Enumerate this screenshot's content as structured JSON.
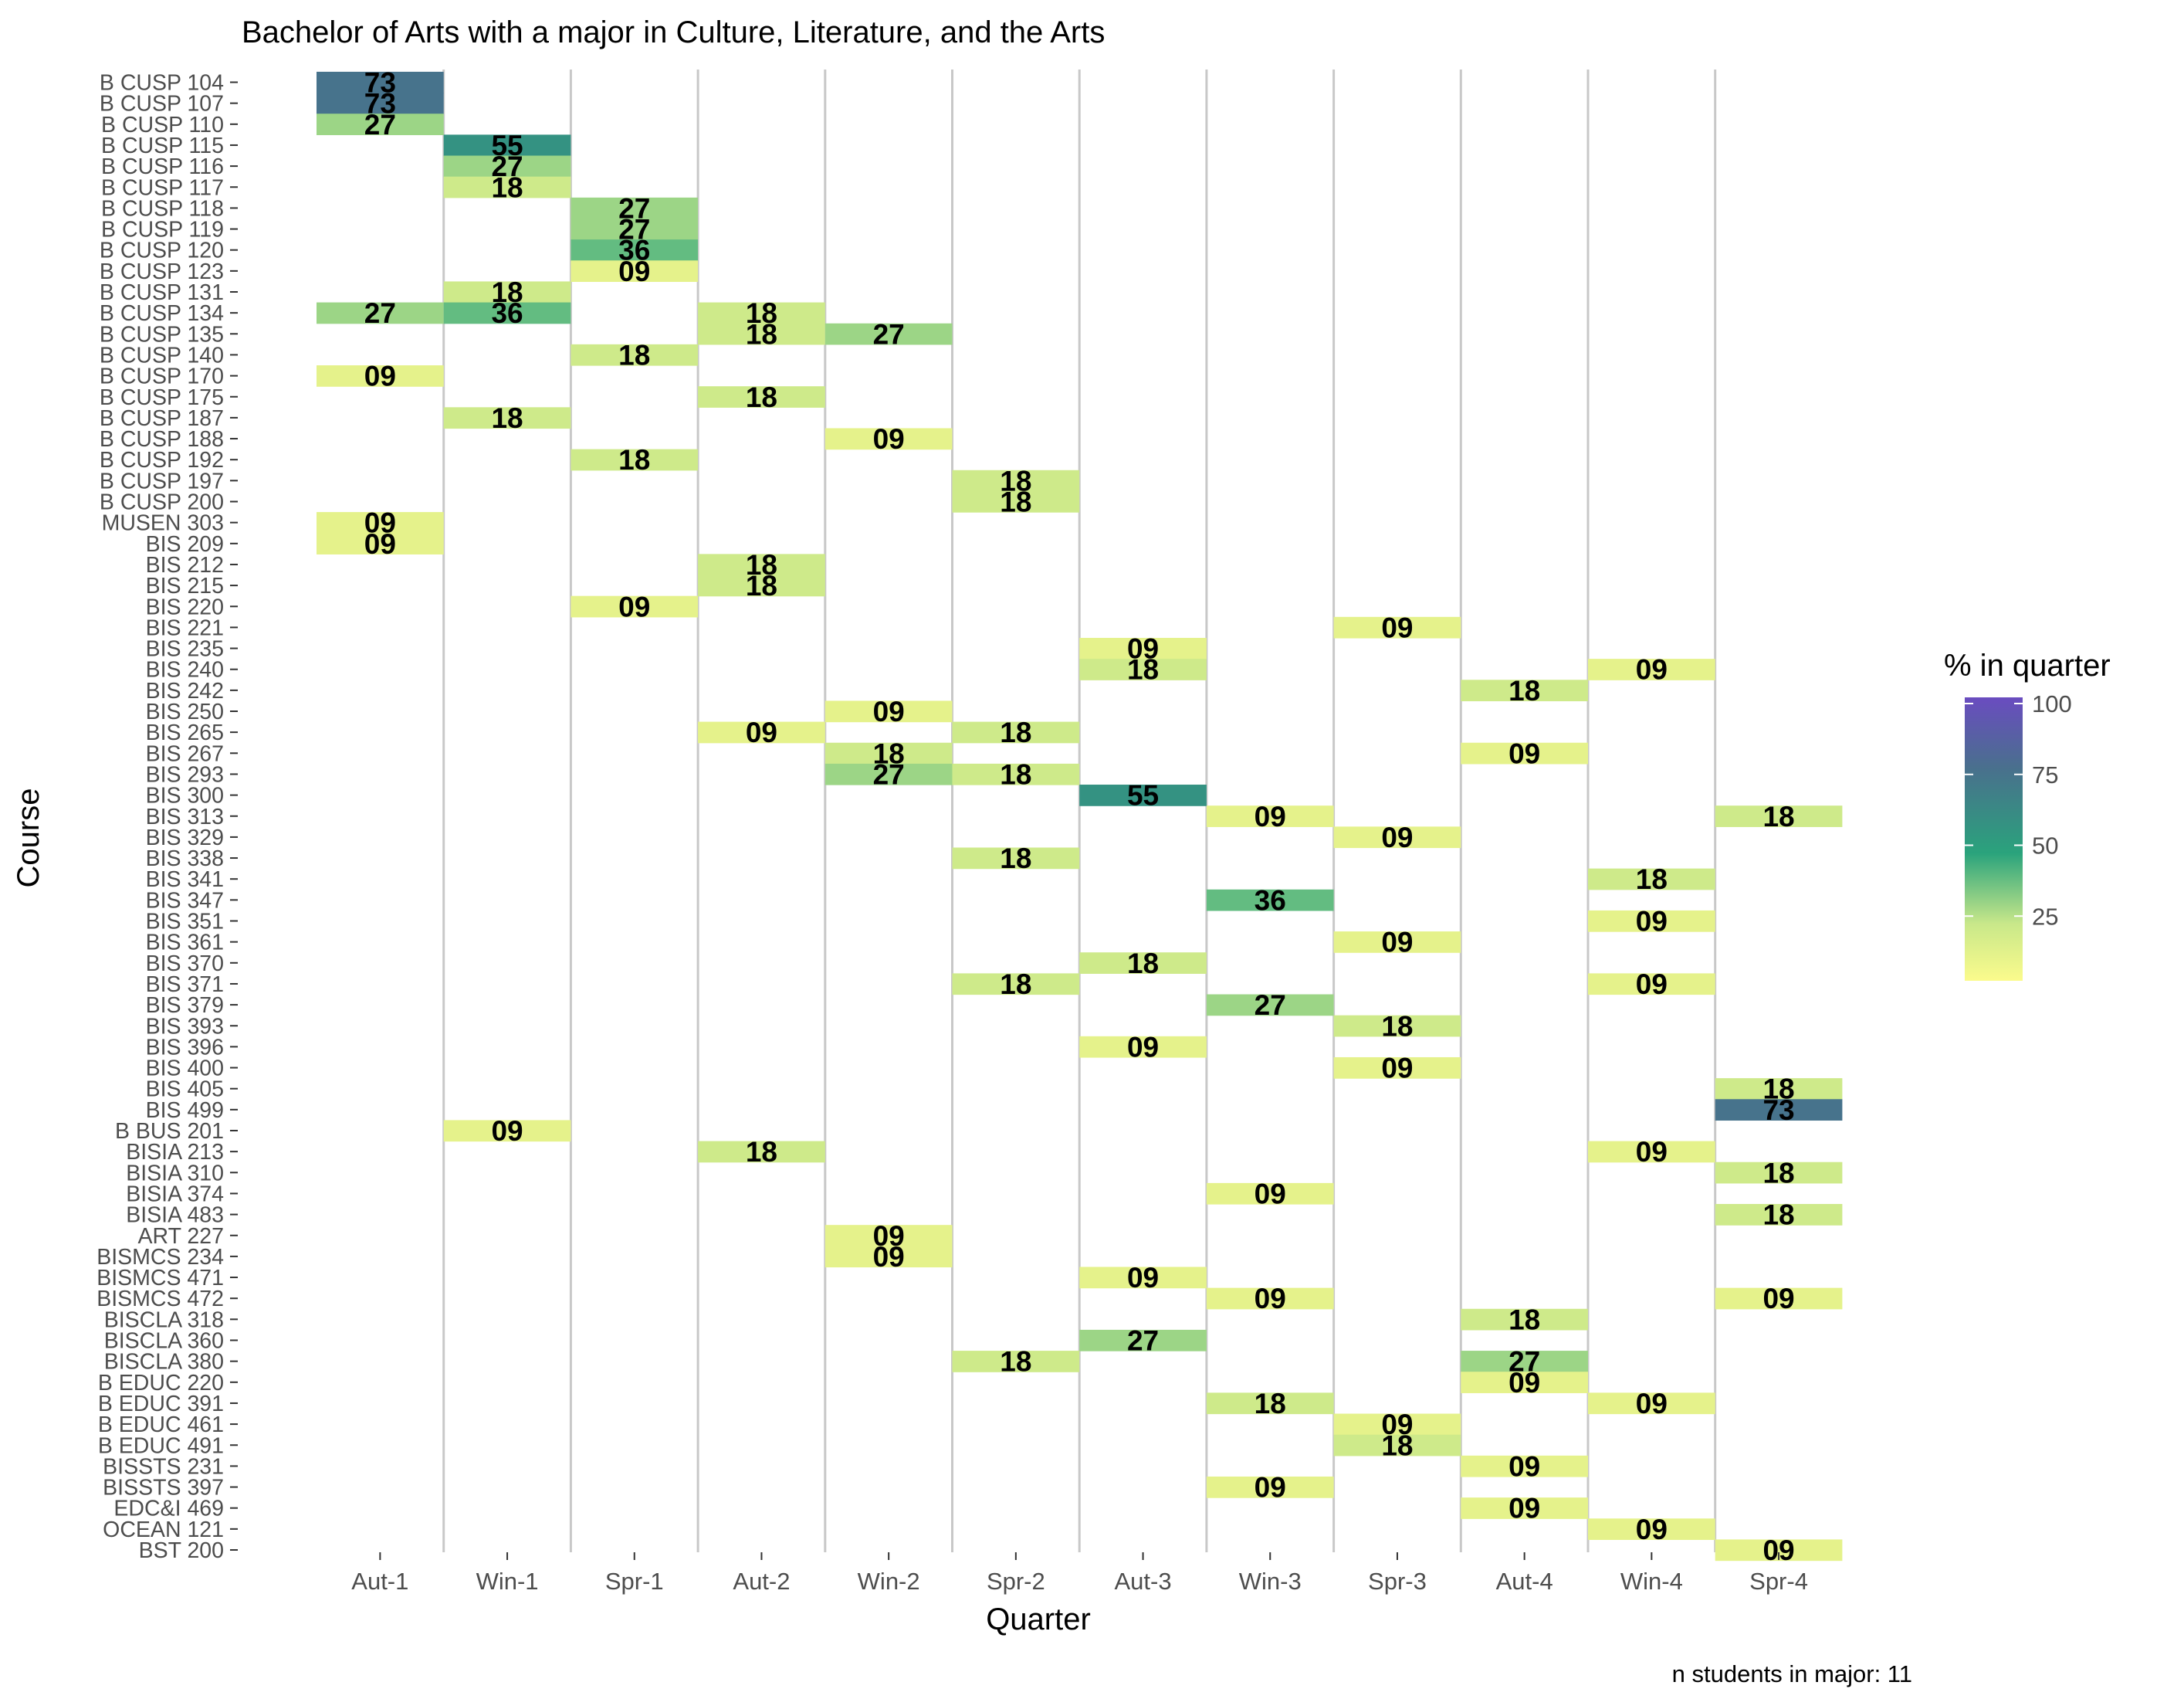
{
  "chart_data": {
    "type": "heatmap",
    "title": "Bachelor of Arts with a major in Culture, Literature, and the Arts",
    "xlabel": "Quarter",
    "ylabel": "Course",
    "caption": "n students in major: 11",
    "legend": {
      "title": "% in quarter",
      "ticks": [
        25,
        50,
        75,
        100
      ],
      "range": [
        0,
        100
      ],
      "placement": "right"
    },
    "colors": {
      "low": "#fbfb8c",
      "mid_low": "#c9e88a",
      "mid": "#2aa37c",
      "high": "#49708d",
      "top": "#6a4cc0",
      "grid": "#c8c8c8"
    },
    "quarters": [
      "Aut-1",
      "Win-1",
      "Spr-1",
      "Aut-2",
      "Win-2",
      "Spr-2",
      "Aut-3",
      "Win-3",
      "Spr-3",
      "Aut-4",
      "Win-4",
      "Spr-4"
    ],
    "courses": [
      "B CUSP 104",
      "B CUSP 107",
      "B CUSP 110",
      "B CUSP 115",
      "B CUSP 116",
      "B CUSP 117",
      "B CUSP 118",
      "B CUSP 119",
      "B CUSP 120",
      "B CUSP 123",
      "B CUSP 131",
      "B CUSP 134",
      "B CUSP 135",
      "B CUSP 140",
      "B CUSP 170",
      "B CUSP 175",
      "B CUSP 187",
      "B CUSP 188",
      "B CUSP 192",
      "B CUSP 197",
      "B CUSP 200",
      "MUSEN 303",
      "BIS 209",
      "BIS 212",
      "BIS 215",
      "BIS 220",
      "BIS 221",
      "BIS 235",
      "BIS 240",
      "BIS 242",
      "BIS 250",
      "BIS 265",
      "BIS 267",
      "BIS 293",
      "BIS 300",
      "BIS 313",
      "BIS 329",
      "BIS 338",
      "BIS 341",
      "BIS 347",
      "BIS 351",
      "BIS 361",
      "BIS 370",
      "BIS 371",
      "BIS 379",
      "BIS 393",
      "BIS 396",
      "BIS 400",
      "BIS 405",
      "BIS 499",
      "B BUS 201",
      "BISIA 213",
      "BISIA 310",
      "BISIA 374",
      "BISIA 483",
      "ART 227",
      "BISMCS 234",
      "BISMCS 471",
      "BISMCS 472",
      "BISCLA 318",
      "BISCLA 360",
      "BISCLA 380",
      "B EDUC 220",
      "B EDUC 391",
      "B EDUC 461",
      "B EDUC 491",
      "BISSTS 231",
      "BISSTS 397",
      "EDC&I 469",
      "OCEAN 121",
      "BST 200"
    ],
    "cells": [
      {
        "course": "B CUSP 104",
        "quarter": "Aut-1",
        "value": 73,
        "label": "73"
      },
      {
        "course": "B CUSP 107",
        "quarter": "Aut-1",
        "value": 73,
        "label": "73"
      },
      {
        "course": "B CUSP 110",
        "quarter": "Aut-1",
        "value": 27,
        "label": "27"
      },
      {
        "course": "B CUSP 134",
        "quarter": "Aut-1",
        "value": 27,
        "label": "27"
      },
      {
        "course": "B CUSP 170",
        "quarter": "Aut-1",
        "value": 9,
        "label": "09"
      },
      {
        "course": "MUSEN 303",
        "quarter": "Aut-1",
        "value": 9,
        "label": "09"
      },
      {
        "course": "BIS 209",
        "quarter": "Aut-1",
        "value": 9,
        "label": "09"
      },
      {
        "course": "B CUSP 115",
        "quarter": "Win-1",
        "value": 55,
        "label": "55"
      },
      {
        "course": "B CUSP 116",
        "quarter": "Win-1",
        "value": 27,
        "label": "27"
      },
      {
        "course": "B CUSP 117",
        "quarter": "Win-1",
        "value": 18,
        "label": "18"
      },
      {
        "course": "B CUSP 131",
        "quarter": "Win-1",
        "value": 18,
        "label": "18"
      },
      {
        "course": "B CUSP 134",
        "quarter": "Win-1",
        "value": 36,
        "label": "36"
      },
      {
        "course": "B CUSP 187",
        "quarter": "Win-1",
        "value": 18,
        "label": "18"
      },
      {
        "course": "B BUS 201",
        "quarter": "Win-1",
        "value": 9,
        "label": "09"
      },
      {
        "course": "B CUSP 118",
        "quarter": "Spr-1",
        "value": 27,
        "label": "27"
      },
      {
        "course": "B CUSP 119",
        "quarter": "Spr-1",
        "value": 27,
        "label": "27"
      },
      {
        "course": "B CUSP 120",
        "quarter": "Spr-1",
        "value": 36,
        "label": "36"
      },
      {
        "course": "B CUSP 123",
        "quarter": "Spr-1",
        "value": 9,
        "label": "09"
      },
      {
        "course": "B CUSP 140",
        "quarter": "Spr-1",
        "value": 18,
        "label": "18"
      },
      {
        "course": "B CUSP 192",
        "quarter": "Spr-1",
        "value": 18,
        "label": "18"
      },
      {
        "course": "BIS 220",
        "quarter": "Spr-1",
        "value": 9,
        "label": "09"
      },
      {
        "course": "B CUSP 134",
        "quarter": "Aut-2",
        "value": 18,
        "label": "18"
      },
      {
        "course": "B CUSP 135",
        "quarter": "Aut-2",
        "value": 18,
        "label": "18"
      },
      {
        "course": "B CUSP 175",
        "quarter": "Aut-2",
        "value": 18,
        "label": "18"
      },
      {
        "course": "BIS 212",
        "quarter": "Aut-2",
        "value": 18,
        "label": "18"
      },
      {
        "course": "BIS 215",
        "quarter": "Aut-2",
        "value": 18,
        "label": "18"
      },
      {
        "course": "BIS 265",
        "quarter": "Aut-2",
        "value": 9,
        "label": "09"
      },
      {
        "course": "BISIA 213",
        "quarter": "Aut-2",
        "value": 18,
        "label": "18"
      },
      {
        "course": "B CUSP 135",
        "quarter": "Win-2",
        "value": 27,
        "label": "27"
      },
      {
        "course": "B CUSP 188",
        "quarter": "Win-2",
        "value": 9,
        "label": "09"
      },
      {
        "course": "BIS 250",
        "quarter": "Win-2",
        "value": 9,
        "label": "09"
      },
      {
        "course": "BIS 267",
        "quarter": "Win-2",
        "value": 18,
        "label": "18"
      },
      {
        "course": "BIS 293",
        "quarter": "Win-2",
        "value": 27,
        "label": "27"
      },
      {
        "course": "ART 227",
        "quarter": "Win-2",
        "value": 9,
        "label": "09"
      },
      {
        "course": "BISMCS 234",
        "quarter": "Win-2",
        "value": 9,
        "label": "09"
      },
      {
        "course": "B CUSP 197",
        "quarter": "Spr-2",
        "value": 18,
        "label": "18"
      },
      {
        "course": "B CUSP 200",
        "quarter": "Spr-2",
        "value": 18,
        "label": "18"
      },
      {
        "course": "BIS 265",
        "quarter": "Spr-2",
        "value": 18,
        "label": "18"
      },
      {
        "course": "BIS 293",
        "quarter": "Spr-2",
        "value": 18,
        "label": "18"
      },
      {
        "course": "BIS 338",
        "quarter": "Spr-2",
        "value": 18,
        "label": "18"
      },
      {
        "course": "BIS 371",
        "quarter": "Spr-2",
        "value": 18,
        "label": "18"
      },
      {
        "course": "BISCLA 380",
        "quarter": "Spr-2",
        "value": 18,
        "label": "18"
      },
      {
        "course": "BIS 235",
        "quarter": "Aut-3",
        "value": 9,
        "label": "09"
      },
      {
        "course": "BIS 240",
        "quarter": "Aut-3",
        "value": 18,
        "label": "18"
      },
      {
        "course": "BIS 300",
        "quarter": "Aut-3",
        "value": 55,
        "label": "55"
      },
      {
        "course": "BIS 370",
        "quarter": "Aut-3",
        "value": 18,
        "label": "18"
      },
      {
        "course": "BIS 396",
        "quarter": "Aut-3",
        "value": 9,
        "label": "09"
      },
      {
        "course": "BISMCS 471",
        "quarter": "Aut-3",
        "value": 9,
        "label": "09"
      },
      {
        "course": "BISCLA 360",
        "quarter": "Aut-3",
        "value": 27,
        "label": "27"
      },
      {
        "course": "BIS 313",
        "quarter": "Win-3",
        "value": 9,
        "label": "09"
      },
      {
        "course": "BIS 347",
        "quarter": "Win-3",
        "value": 36,
        "label": "36"
      },
      {
        "course": "BIS 379",
        "quarter": "Win-3",
        "value": 27,
        "label": "27"
      },
      {
        "course": "BISIA 374",
        "quarter": "Win-3",
        "value": 9,
        "label": "09"
      },
      {
        "course": "BISMCS 472",
        "quarter": "Win-3",
        "value": 9,
        "label": "09"
      },
      {
        "course": "B EDUC 391",
        "quarter": "Win-3",
        "value": 18,
        "label": "18"
      },
      {
        "course": "BISSTS 397",
        "quarter": "Win-3",
        "value": 9,
        "label": "09"
      },
      {
        "course": "BIS 221",
        "quarter": "Spr-3",
        "value": 9,
        "label": "09"
      },
      {
        "course": "BIS 329",
        "quarter": "Spr-3",
        "value": 9,
        "label": "09"
      },
      {
        "course": "BIS 361",
        "quarter": "Spr-3",
        "value": 9,
        "label": "09"
      },
      {
        "course": "BIS 393",
        "quarter": "Spr-3",
        "value": 18,
        "label": "18"
      },
      {
        "course": "BIS 400",
        "quarter": "Spr-3",
        "value": 9,
        "label": "09"
      },
      {
        "course": "B EDUC 461",
        "quarter": "Spr-3",
        "value": 9,
        "label": "09"
      },
      {
        "course": "B EDUC 491",
        "quarter": "Spr-3",
        "value": 18,
        "label": "18"
      },
      {
        "course": "BIS 242",
        "quarter": "Aut-4",
        "value": 18,
        "label": "18"
      },
      {
        "course": "BIS 267",
        "quarter": "Aut-4",
        "value": 9,
        "label": "09"
      },
      {
        "course": "BISCLA 318",
        "quarter": "Aut-4",
        "value": 18,
        "label": "18"
      },
      {
        "course": "BISCLA 380",
        "quarter": "Aut-4",
        "value": 27,
        "label": "27"
      },
      {
        "course": "B EDUC 220",
        "quarter": "Aut-4",
        "value": 9,
        "label": "09"
      },
      {
        "course": "BISSTS 231",
        "quarter": "Aut-4",
        "value": 9,
        "label": "09"
      },
      {
        "course": "EDC&I 469",
        "quarter": "Aut-4",
        "value": 9,
        "label": "09"
      },
      {
        "course": "BIS 240",
        "quarter": "Win-4",
        "value": 9,
        "label": "09"
      },
      {
        "course": "BIS 341",
        "quarter": "Win-4",
        "value": 18,
        "label": "18"
      },
      {
        "course": "BIS 351",
        "quarter": "Win-4",
        "value": 9,
        "label": "09"
      },
      {
        "course": "BIS 371",
        "quarter": "Win-4",
        "value": 9,
        "label": "09"
      },
      {
        "course": "BISIA 213",
        "quarter": "Win-4",
        "value": 9,
        "label": "09"
      },
      {
        "course": "B EDUC 391",
        "quarter": "Win-4",
        "value": 9,
        "label": "09"
      },
      {
        "course": "OCEAN 121",
        "quarter": "Win-4",
        "value": 9,
        "label": "09"
      },
      {
        "course": "BIS 313",
        "quarter": "Spr-4",
        "value": 18,
        "label": "18"
      },
      {
        "course": "BIS 405",
        "quarter": "Spr-4",
        "value": 18,
        "label": "18"
      },
      {
        "course": "BIS 499",
        "quarter": "Spr-4",
        "value": 73,
        "label": "73"
      },
      {
        "course": "BISIA 310",
        "quarter": "Spr-4",
        "value": 18,
        "label": "18"
      },
      {
        "course": "BISIA 483",
        "quarter": "Spr-4",
        "value": 18,
        "label": "18"
      },
      {
        "course": "BISMCS 472",
        "quarter": "Spr-4",
        "value": 9,
        "label": "09"
      },
      {
        "course": "BST 200",
        "quarter": "Spr-4",
        "value": 9,
        "label": "09"
      }
    ]
  }
}
